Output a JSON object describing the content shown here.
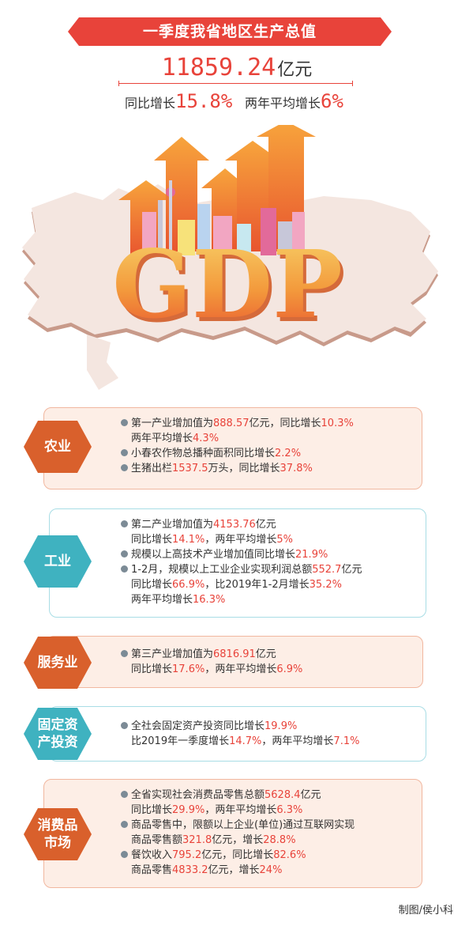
{
  "header": {
    "title": "一季度我省地区生产总值",
    "total_value": "11859.24",
    "total_unit": "亿元",
    "yoy_label": "同比增长",
    "yoy_value": "15.8%",
    "two_year_label": "两年平均增长",
    "two_year_value": "6%"
  },
  "hero": {
    "text": "GDP"
  },
  "colors": {
    "accent": "#e8433a",
    "warm_hex": "#d9602c",
    "cool_hex": "#3fb2c0"
  },
  "sections": {
    "agri": {
      "label": "农业",
      "l1": [
        "第一产业增加值为",
        "888.57",
        "亿元，同比增长",
        "10.3%"
      ],
      "l2": [
        "两年平均增长",
        "4.3%"
      ],
      "l3": [
        "小春农作物总播种面积同比增长",
        "2.2%"
      ],
      "l4": [
        "生猪出栏",
        "1537.5",
        "万头，同比增长",
        "37.8%"
      ]
    },
    "ind": {
      "label": "工业",
      "l1": [
        "第二产业增加值为",
        "4153.76",
        "亿元"
      ],
      "l2": [
        "同比增长",
        "14.1%",
        "，两年平均增长",
        "5%"
      ],
      "l3": [
        "规模以上高技术产业增加值同比增长",
        "21.9%"
      ],
      "l4": [
        "1-2月，规模以上工业企业实现利润总额",
        "552.7",
        "亿元"
      ],
      "l5": [
        "同比增长",
        "66.9%",
        "，比2019年1-2月增长",
        "35.2%"
      ],
      "l6": [
        "两年平均增长",
        "16.3%"
      ]
    },
    "svc": {
      "label": "服务业",
      "l1": [
        "第三产业增加值为",
        "6816.91",
        "亿元"
      ],
      "l2": [
        "同比增长",
        "17.6%",
        "，两年平均增长",
        "6.9%"
      ]
    },
    "inv": {
      "label_1": "固定资",
      "label_2": "产投资",
      "l1": [
        "全社会固定资产投资同比增长",
        "19.9%"
      ],
      "l2": [
        "比2019年一季度增长",
        "14.7%",
        "，两年平均增长",
        "7.1%"
      ]
    },
    "cons": {
      "label_1": "消费品",
      "label_2": "市场",
      "l1": [
        "全省实现社会消费品零售总额",
        "5628.4",
        "亿元"
      ],
      "l2": [
        "同比增长",
        "29.9%",
        "，两年平均增长",
        "6.3%"
      ],
      "l3": [
        "商品零售中，限额以上企业(单位)通过互联网实现"
      ],
      "l4": [
        "商品零售额",
        "321.8",
        "亿元，增长",
        "28.8%"
      ],
      "l5": [
        "餐饮收入",
        "795.2",
        "亿元，同比增长",
        "82.6%"
      ],
      "l6": [
        "商品零售",
        "4833.2",
        "亿元，增长",
        "24%"
      ]
    }
  },
  "credit": "制图/侯小科"
}
